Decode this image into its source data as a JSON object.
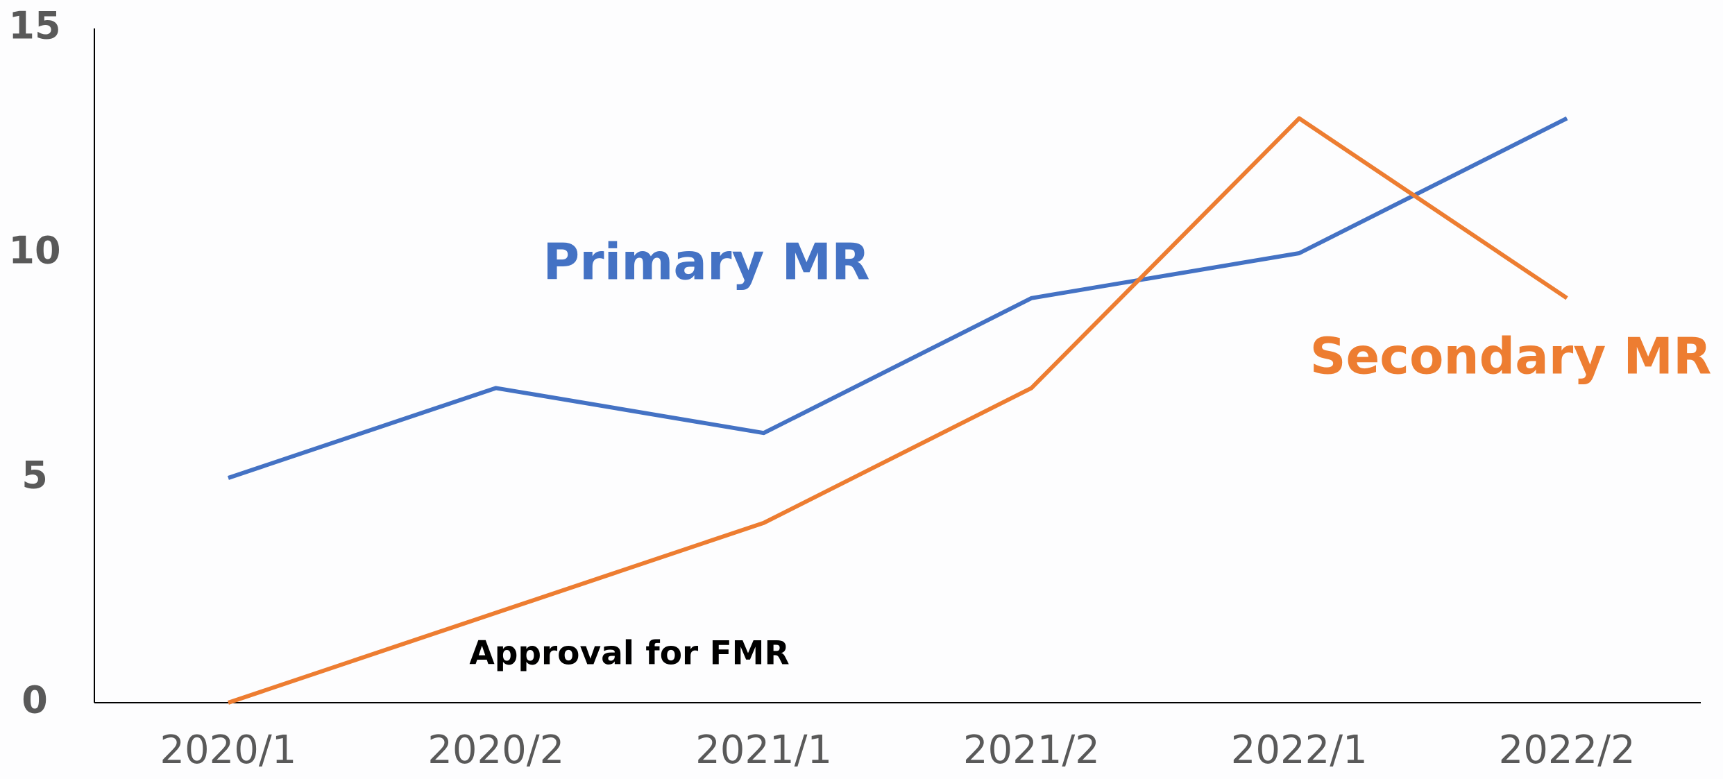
{
  "chart_data": {
    "type": "line",
    "categories": [
      "2020/1",
      "2020/2",
      "2021/1",
      "2021/2",
      "2022/1",
      "2022/2"
    ],
    "series": [
      {
        "name": "Primary MR",
        "color": "#4472c4",
        "values": [
          5,
          7,
          6,
          9,
          10,
          13
        ]
      },
      {
        "name": "Secondary MR",
        "color": "#ed7d31",
        "values": [
          0,
          2,
          4,
          7,
          13,
          9
        ]
      }
    ],
    "annotations": [
      "Approval for FMR"
    ],
    "ylim": [
      0,
      15
    ],
    "yticks": [
      0,
      5,
      10,
      15
    ],
    "grid": false
  }
}
